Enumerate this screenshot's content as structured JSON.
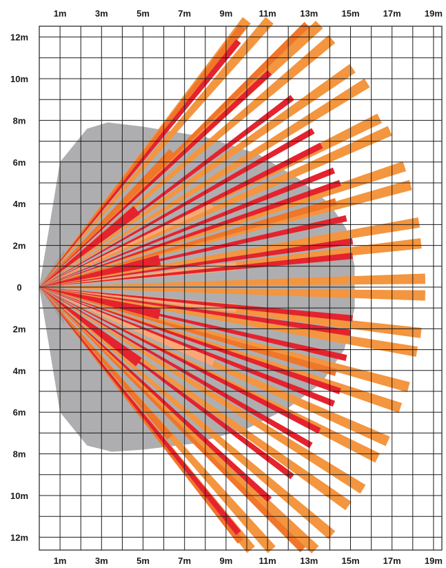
{
  "colors": {
    "grid": "#1a1a1a",
    "coverage_area": "#aeaeb0",
    "coverage_dark": "#9a9a9c",
    "beam_long": "#f4953f",
    "beam_mid": "#f0762a",
    "beam_short": "#e5232e",
    "beam_faint": "#f8a878"
  },
  "x_ticks": [
    "1m",
    "3m",
    "5m",
    "7m",
    "9m",
    "11m",
    "13m",
    "15m",
    "17m",
    "19m"
  ],
  "y_ticks": [
    "12m",
    "10m",
    "8m",
    "6m",
    "4m",
    "2m",
    "0",
    "2m",
    "4m",
    "6m",
    "8m",
    "10m",
    "12m"
  ],
  "chart_data": {
    "type": "detection-pattern",
    "x_range_m": [
      0,
      19
    ],
    "y_range_m": [
      -12.6,
      12.8
    ],
    "grid_step_m": 1,
    "origin_m": [
      0,
      0
    ],
    "coverage_area": {
      "points_m": [
        [
          0,
          0
        ],
        [
          1,
          6
        ],
        [
          2.3,
          7.6
        ],
        [
          3.3,
          7.9
        ],
        [
          5,
          7.7
        ],
        [
          8,
          7.2
        ],
        [
          10.5,
          6.4
        ],
        [
          12.5,
          5.2
        ],
        [
          14,
          4
        ],
        [
          14.8,
          2.8
        ],
        [
          15.2,
          1
        ],
        [
          15.2,
          -1
        ],
        [
          14.7,
          -3
        ],
        [
          13.6,
          -4.6
        ],
        [
          12,
          -5.8
        ],
        [
          10,
          -6.8
        ],
        [
          7.5,
          -7.5
        ],
        [
          5,
          -7.8
        ],
        [
          3.5,
          -7.9
        ],
        [
          2.3,
          -7.6
        ],
        [
          1,
          -6
        ],
        [
          0,
          0
        ]
      ],
      "inner_edge_points_m": [
        [
          0,
          0
        ],
        [
          1.2,
          1.8
        ],
        [
          1.2,
          -1.8
        ]
      ]
    },
    "beams": [
      {
        "zone": "far",
        "end_m": [
          10.0,
          12.8
        ],
        "width_m": 0.5
      },
      {
        "zone": "far",
        "end_m": [
          11.1,
          12.8
        ],
        "width_m": 0.5
      },
      {
        "zone": "far",
        "end_m": [
          13.5,
          12.6
        ],
        "width_m": 0.5
      },
      {
        "zone": "far",
        "end_m": [
          14.1,
          11.9
        ],
        "width_m": 0.5
      },
      {
        "zone": "far",
        "end_m": [
          15.1,
          10.5
        ],
        "width_m": 0.5
      },
      {
        "zone": "far",
        "end_m": [
          15.8,
          9.8
        ],
        "width_m": 0.5
      },
      {
        "zone": "far",
        "end_m": [
          16.4,
          8.1
        ],
        "width_m": 0.5
      },
      {
        "zone": "far",
        "end_m": [
          16.9,
          7.5
        ],
        "width_m": 0.5
      },
      {
        "zone": "far",
        "end_m": [
          17.6,
          5.8
        ],
        "width_m": 0.5
      },
      {
        "zone": "far",
        "end_m": [
          17.9,
          4.9
        ],
        "width_m": 0.5
      },
      {
        "zone": "far",
        "end_m": [
          18.3,
          3.1
        ],
        "width_m": 0.5
      },
      {
        "zone": "far",
        "end_m": [
          18.4,
          2.1
        ],
        "width_m": 0.5
      },
      {
        "zone": "far",
        "end_m": [
          18.6,
          0.4
        ],
        "width_m": 0.5
      },
      {
        "zone": "far",
        "end_m": [
          18.6,
          -0.4
        ],
        "width_m": 0.5
      },
      {
        "zone": "far",
        "end_m": [
          18.4,
          -2.2
        ],
        "width_m": 0.5
      },
      {
        "zone": "far",
        "end_m": [
          18.2,
          -3.1
        ],
        "width_m": 0.5
      },
      {
        "zone": "far",
        "end_m": [
          17.8,
          -4.8
        ],
        "width_m": 0.5
      },
      {
        "zone": "far",
        "end_m": [
          17.4,
          -5.8
        ],
        "width_m": 0.5
      },
      {
        "zone": "far",
        "end_m": [
          16.8,
          -7.4
        ],
        "width_m": 0.5
      },
      {
        "zone": "far",
        "end_m": [
          16.3,
          -8.2
        ],
        "width_m": 0.5
      },
      {
        "zone": "far",
        "end_m": [
          15.6,
          -9.7
        ],
        "width_m": 0.5
      },
      {
        "zone": "far",
        "end_m": [
          14.9,
          -10.5
        ],
        "width_m": 0.5
      },
      {
        "zone": "far",
        "end_m": [
          14.1,
          -11.9
        ],
        "width_m": 0.5
      },
      {
        "zone": "far",
        "end_m": [
          13.3,
          -12.6
        ],
        "width_m": 0.5
      },
      {
        "zone": "far",
        "end_m": [
          11.2,
          -12.6
        ],
        "width_m": 0.5
      },
      {
        "zone": "far",
        "end_m": [
          10.2,
          -12.6
        ],
        "width_m": 0.5
      },
      {
        "zone": "mid",
        "end_m": [
          9.8,
          12.5
        ],
        "width_m": 0.35
      },
      {
        "zone": "mid",
        "end_m": [
          12.9,
          12.6
        ],
        "width_m": 0.35
      },
      {
        "zone": "mid",
        "end_m": [
          14.3,
          4.1
        ],
        "width_m": 0.35
      },
      {
        "zone": "mid",
        "end_m": [
          14.3,
          -4.1
        ],
        "width_m": 0.35
      },
      {
        "zone": "mid",
        "end_m": [
          12.7,
          -12.6
        ],
        "width_m": 0.35
      },
      {
        "zone": "mid",
        "end_m": [
          9.7,
          -12.2
        ],
        "width_m": 0.35
      },
      {
        "zone": "mid",
        "end_m": [
          6.4,
          6.5
        ],
        "width_m": 0.35
      },
      {
        "zone": "mid",
        "end_m": [
          6.3,
          -7.2
        ],
        "width_m": 0.35
      },
      {
        "zone": "near",
        "end_m": [
          9.6,
          11.8
        ],
        "width_m": 0.3
      },
      {
        "zone": "near",
        "end_m": [
          11.1,
          10.3
        ],
        "width_m": 0.3
      },
      {
        "zone": "near",
        "end_m": [
          12.2,
          9.1
        ],
        "width_m": 0.3
      },
      {
        "zone": "near",
        "end_m": [
          13.2,
          7.5
        ],
        "width_m": 0.3
      },
      {
        "zone": "near",
        "end_m": [
          13.6,
          6.8
        ],
        "width_m": 0.3
      },
      {
        "zone": "near",
        "end_m": [
          14.2,
          5.6
        ],
        "width_m": 0.3
      },
      {
        "zone": "near",
        "end_m": [
          14.5,
          5.0
        ],
        "width_m": 0.3
      },
      {
        "zone": "near",
        "end_m": [
          14.8,
          3.3
        ],
        "width_m": 0.3
      },
      {
        "zone": "near",
        "end_m": [
          15.1,
          2.2
        ],
        "width_m": 0.3
      },
      {
        "zone": "near",
        "end_m": [
          15.1,
          1.5
        ],
        "width_m": 0.3
      },
      {
        "zone": "near",
        "end_m": [
          15.1,
          -1.5
        ],
        "width_m": 0.3
      },
      {
        "zone": "near",
        "end_m": [
          15.0,
          -2.2
        ],
        "width_m": 0.3
      },
      {
        "zone": "near",
        "end_m": [
          14.8,
          -3.4
        ],
        "width_m": 0.3
      },
      {
        "zone": "near",
        "end_m": [
          14.5,
          -5.0
        ],
        "width_m": 0.3
      },
      {
        "zone": "near",
        "end_m": [
          14.2,
          -5.6
        ],
        "width_m": 0.3
      },
      {
        "zone": "near",
        "end_m": [
          13.5,
          -6.9
        ],
        "width_m": 0.3
      },
      {
        "zone": "near",
        "end_m": [
          13.1,
          -7.6
        ],
        "width_m": 0.3
      },
      {
        "zone": "near",
        "end_m": [
          12.2,
          -9.1
        ],
        "width_m": 0.3
      },
      {
        "zone": "near",
        "end_m": [
          11.1,
          -10.2
        ],
        "width_m": 0.3
      },
      {
        "zone": "near",
        "end_m": [
          9.6,
          -11.8
        ],
        "width_m": 0.3
      },
      {
        "zone": "short",
        "end_m": [
          4.7,
          3.7
        ],
        "width_m": 0.5
      },
      {
        "zone": "short",
        "end_m": [
          5.8,
          1.3
        ],
        "width_m": 0.5
      },
      {
        "zone": "short",
        "end_m": [
          5.8,
          -1.3
        ],
        "width_m": 0.5
      },
      {
        "zone": "short",
        "end_m": [
          4.8,
          -3.6
        ],
        "width_m": 0.5
      },
      {
        "zone": "faint",
        "end_m": [
          8.3,
          4.0
        ],
        "width_m": 0.4
      },
      {
        "zone": "faint",
        "end_m": [
          9.5,
          1.0
        ],
        "width_m": 0.4
      },
      {
        "zone": "faint",
        "end_m": [
          9.5,
          -1.0
        ],
        "width_m": 0.4
      },
      {
        "zone": "faint",
        "end_m": [
          8.4,
          -3.6
        ],
        "width_m": 0.4
      }
    ]
  }
}
